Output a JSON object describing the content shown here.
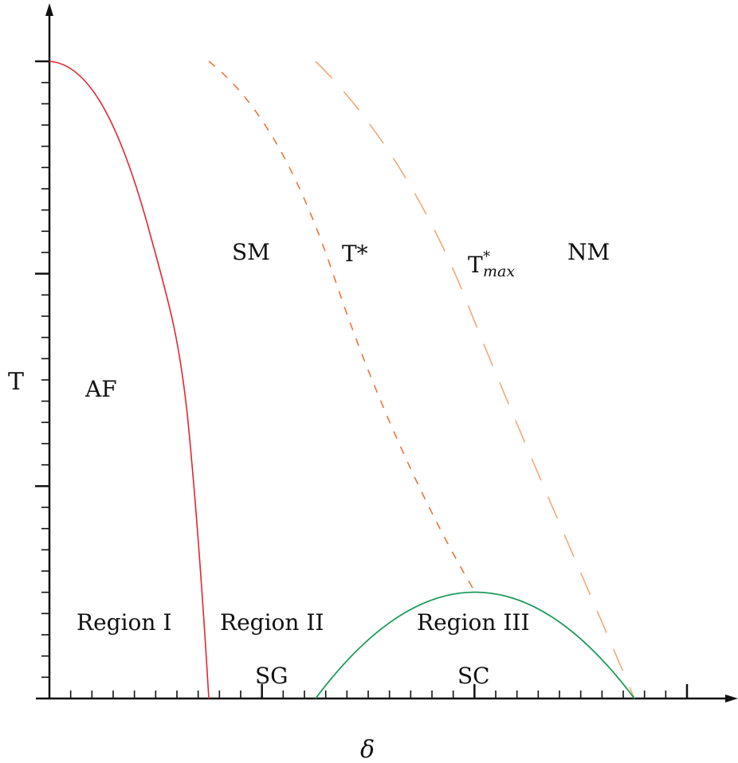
{
  "diagram": {
    "axes": {
      "x_label": "δ",
      "y_label": "T",
      "x_ticks": {
        "minor_count": 30,
        "major_every": 10
      },
      "y_ticks": {
        "minor_count": 30,
        "major_every": 10
      }
    },
    "labels": {
      "af": "AF",
      "sm": "SM",
      "t_star": "T*",
      "t_max_base": "T",
      "t_max_sup": "*",
      "t_max_sub": "max",
      "nm": "NM",
      "region_1": "Region I",
      "region_2": "Region II",
      "region_3": "Region III",
      "sg": "SG",
      "sc": "SC"
    },
    "curves": {
      "af_boundary": {
        "style": "solid",
        "color": "#e3262f"
      },
      "t_star": {
        "style": "dashed",
        "color": "#e8763a"
      },
      "t_max": {
        "style": "long-dashed",
        "color": "#f2a877"
      },
      "sc_dome": {
        "style": "solid",
        "color": "#1a9a5a"
      }
    }
  }
}
